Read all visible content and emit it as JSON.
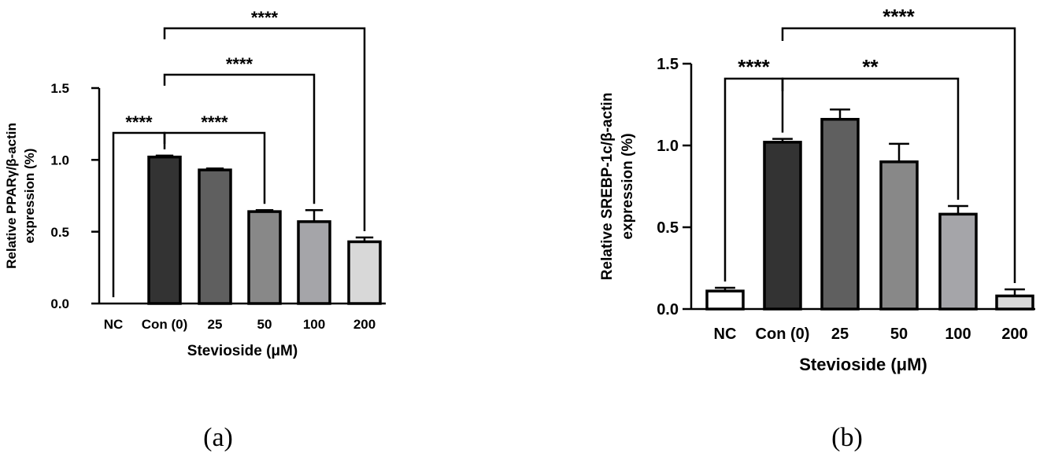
{
  "panel_labels": [
    "(a)",
    "(b)"
  ],
  "chart_data": [
    {
      "type": "bar",
      "panel": "(a)",
      "categories": [
        "NC",
        "Con (0)",
        "25",
        "50",
        "100",
        "200"
      ],
      "values": [
        0.0,
        1.02,
        0.93,
        0.64,
        0.57,
        0.43
      ],
      "errors": [
        0.0,
        0.01,
        0.01,
        0.01,
        0.08,
        0.03
      ],
      "bar_colors": [
        "#ffffff",
        "#333333",
        "#5f5f5f",
        "#888888",
        "#a5a5a9",
        "#d8d8d8"
      ],
      "xlabel": "Stevioside (μM)",
      "ylabel_lines": [
        "Relative PPARγ/β-actin",
        "expression (%)"
      ],
      "ylim": [
        0,
        1.5
      ],
      "yticks": [
        "0.0",
        "0.5",
        "1.0",
        "1.5"
      ],
      "grid": false,
      "significance": [
        {
          "from": 0,
          "to": 1,
          "label": "****",
          "level": 1
        },
        {
          "from": 1,
          "to": 3,
          "label": "****",
          "level": 1
        },
        {
          "from": 1,
          "to": 4,
          "label": "****",
          "level": 2
        },
        {
          "from": 1,
          "to": 5,
          "label": "****",
          "level": 3
        }
      ]
    },
    {
      "type": "bar",
      "panel": "(b)",
      "categories": [
        "NC",
        "Con (0)",
        "25",
        "50",
        "100",
        "200"
      ],
      "values": [
        0.11,
        1.02,
        1.16,
        0.9,
        0.58,
        0.08
      ],
      "errors": [
        0.02,
        0.02,
        0.06,
        0.11,
        0.05,
        0.04
      ],
      "bar_colors": [
        "#ffffff",
        "#333333",
        "#5f5f5f",
        "#888888",
        "#a5a5a9",
        "#d8d8d8"
      ],
      "xlabel": "Stevioside (μM)",
      "ylabel_lines": [
        "Relative SREBP-1c/β-actin",
        "expression (%)"
      ],
      "ylim": [
        0,
        1.5
      ],
      "yticks": [
        "0.0",
        "0.5",
        "1.0",
        "1.5"
      ],
      "grid": false,
      "significance": [
        {
          "from": 0,
          "to": 1,
          "label": "****",
          "level": 1
        },
        {
          "from": 1,
          "to": 4,
          "label": "**",
          "level": 1
        },
        {
          "from": 1,
          "to": 5,
          "label": "****",
          "level": 2
        }
      ]
    }
  ]
}
